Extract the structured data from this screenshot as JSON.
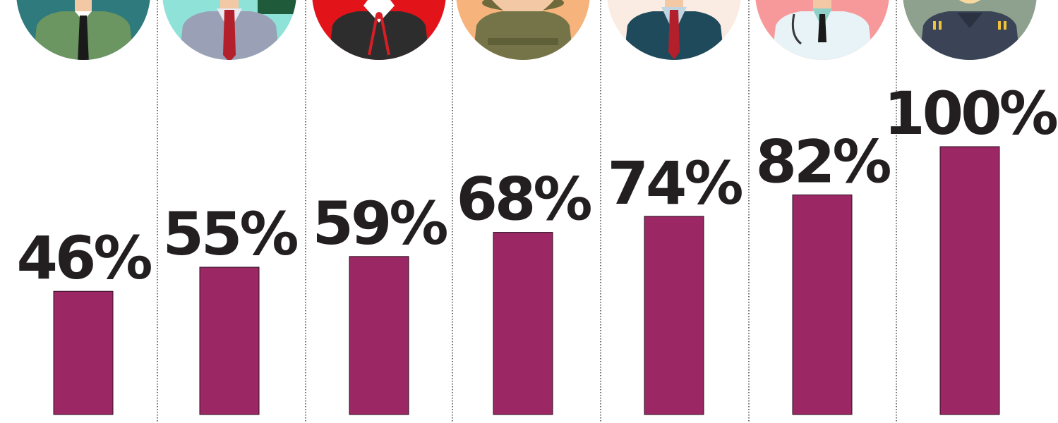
{
  "chart_data": {
    "type": "bar",
    "categories": [
      "",
      "",
      "",
      "",
      "",
      "",
      ""
    ],
    "values": [
      46,
      55,
      59,
      68,
      74,
      82,
      100
    ],
    "labels": [
      "46%",
      "55%",
      "59%",
      "68%",
      "74%",
      "82%",
      "100%"
    ],
    "icons": [
      "green-suit-person-icon",
      "grey-suit-person-icon",
      "judge-icon",
      "soldier-icon",
      "navy-suit-person-icon",
      "doctor-icon",
      "military-officer-icon"
    ],
    "ylim": [
      0,
      100
    ],
    "grid": false,
    "colors": {
      "bar": "#9b2764",
      "text": "#231f20",
      "divider": "#231f20",
      "icon_backgrounds": [
        "#2e7a7c",
        "#8fe2d8",
        "#e2141a",
        "#f6b47c",
        "#fbece3",
        "#f7999b",
        "#8ea08e"
      ]
    }
  }
}
